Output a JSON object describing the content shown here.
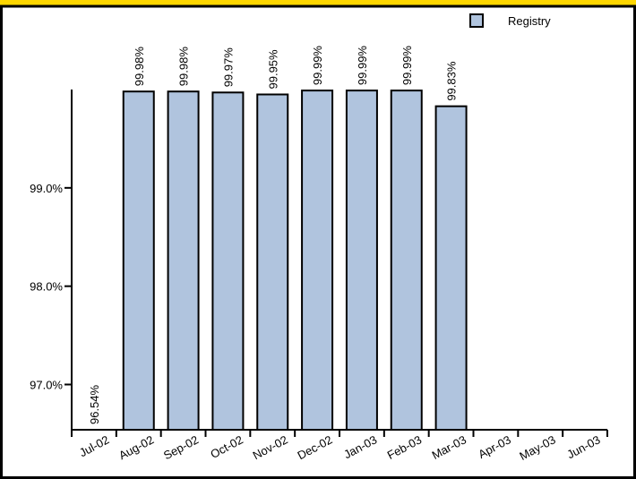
{
  "chart_data": {
    "type": "bar",
    "categories": [
      "Jul-02",
      "Aug-02",
      "Sep-02",
      "Oct-02",
      "Nov-02",
      "Dec-02",
      "Jan-03",
      "Feb-03",
      "Mar-03",
      "Apr-03",
      "May-03",
      "Jun-03"
    ],
    "series": [
      {
        "name": "Registry",
        "color": "#b0c4de",
        "values": [
          96.54,
          99.98,
          99.98,
          99.97,
          99.95,
          99.99,
          99.99,
          99.99,
          99.83,
          null,
          null,
          null
        ],
        "value_labels": [
          "96.54%",
          "99.98%",
          "99.98%",
          "99.97%",
          "99.95%",
          "99.99%",
          "99.99%",
          "99.99%",
          "99.83%",
          null,
          null,
          null
        ]
      }
    ],
    "ylim": [
      96.54,
      100
    ],
    "yticks": [
      {
        "value": 97,
        "label": "97.0%"
      },
      {
        "value": 98,
        "label": "98.0%"
      },
      {
        "value": 99,
        "label": "99.0%"
      }
    ],
    "legend": "top-right"
  }
}
